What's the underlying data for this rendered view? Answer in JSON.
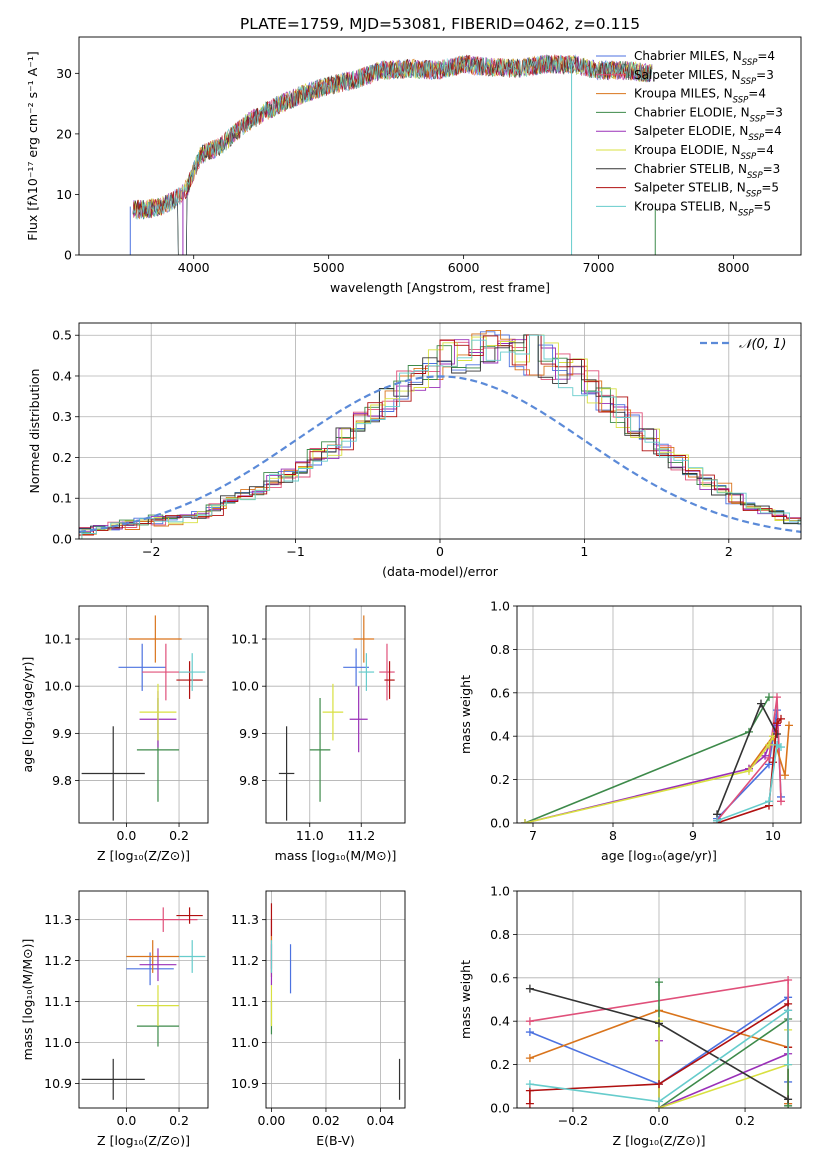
{
  "figure_title": "PLATE=1759, MJD=53081, FIBERID=0462, z=0.115",
  "chart_data": [
    {
      "id": "spectrum",
      "type": "line",
      "title": "PLATE=1759, MJD=53081, FIBERID=0462, z=0.115",
      "xlabel": "wavelength [Angstrom, rest frame]",
      "ylabel": "Flux [fλ10⁻¹⁷ erg cm⁻² s⁻¹ A⁻¹]",
      "xlim": [
        3150,
        8500
      ],
      "ylim": [
        0,
        36
      ],
      "xticks": [
        4000,
        5000,
        6000,
        7000,
        8000
      ],
      "yticks": [
        0,
        10,
        20,
        30
      ],
      "grid": false,
      "legend_position": "top-right",
      "spectrum_shape": {
        "x": [
          3550,
          3650,
          3750,
          3850,
          3950,
          4050,
          4200,
          4400,
          4600,
          4800,
          5000,
          5200,
          5400,
          5600,
          5800,
          6000,
          6200,
          6400,
          6600,
          6800,
          7000,
          7200,
          7400
        ],
        "y": [
          7.5,
          7.5,
          8.0,
          9.0,
          11.0,
          16.5,
          18.0,
          22.0,
          24.5,
          26.5,
          28.0,
          29.0,
          30.5,
          30.8,
          30.5,
          31.5,
          31.0,
          30.8,
          31.5,
          31.5,
          30.5,
          30.5,
          30.0
        ]
      },
      "dropouts_x": [
        3530,
        3920,
        6800,
        7420
      ],
      "series": [
        {
          "name": "Chabrier MILES, N",
          "sub": "SSP",
          "suffix": "=4",
          "color": "#4c72e0"
        },
        {
          "name": "Salpeter MILES, N",
          "sub": "SSP",
          "suffix": "=3",
          "color": "#e0507a"
        },
        {
          "name": "Kroupa MILES, N",
          "sub": "SSP",
          "suffix": "=4",
          "color": "#d9741c"
        },
        {
          "name": "Chabrier ELODIE, N",
          "sub": "SSP",
          "suffix": "=3",
          "color": "#3d8a4a"
        },
        {
          "name": "Salpeter ELODIE, N",
          "sub": "SSP",
          "suffix": "=4",
          "color": "#9a30b8"
        },
        {
          "name": "Kroupa ELODIE, N",
          "sub": "SSP",
          "suffix": "=4",
          "color": "#d8e040"
        },
        {
          "name": "Chabrier STELIB, N",
          "sub": "SSP",
          "suffix": "=3",
          "color": "#333333"
        },
        {
          "name": "Salpeter STELIB, N",
          "sub": "SSP",
          "suffix": "=5",
          "color": "#b01010"
        },
        {
          "name": "Kroupa STELIB, N",
          "sub": "SSP",
          "suffix": "=5",
          "color": "#66cccc"
        }
      ]
    },
    {
      "id": "residuals",
      "type": "bar",
      "xlabel": "(data-model)/error",
      "ylabel": "Normed distribution",
      "xlim": [
        -2.5,
        2.5
      ],
      "ylim": [
        0,
        0.53
      ],
      "xticks": [
        -2,
        -1,
        0,
        1,
        2
      ],
      "yticks": [
        0.0,
        0.1,
        0.2,
        0.3,
        0.4,
        0.5
      ],
      "grid": true,
      "legend_position": "top-right",
      "reference_label": "𝒩(0, 1)",
      "reference_color": "#5b8ad8",
      "bin_width": 0.1,
      "bin_start": -2.5,
      "base_heights": [
        0.02,
        0.025,
        0.03,
        0.035,
        0.04,
        0.045,
        0.05,
        0.055,
        0.065,
        0.075,
        0.09,
        0.105,
        0.12,
        0.14,
        0.16,
        0.18,
        0.2,
        0.225,
        0.25,
        0.28,
        0.31,
        0.34,
        0.37,
        0.4,
        0.42,
        0.44,
        0.45,
        0.46,
        0.47,
        0.48,
        0.46,
        0.45,
        0.44,
        0.42,
        0.4,
        0.37,
        0.34,
        0.31,
        0.28,
        0.25,
        0.22,
        0.19,
        0.165,
        0.14,
        0.12,
        0.1,
        0.085,
        0.07,
        0.058,
        0.046,
        0.036
      ]
    },
    {
      "id": "age-vs-Z",
      "type": "scatter",
      "xlabel": "Z [log₁₀(Z/Z⊙)]",
      "ylabel": "age  [log₁₀(age/yr)]",
      "xlim": [
        -0.18,
        0.31
      ],
      "ylim": [
        9.71,
        10.17
      ],
      "xticks": [
        0.0,
        0.2
      ],
      "yticks": [
        9.8,
        9.9,
        10.0,
        10.1
      ],
      "grid": true,
      "points": [
        {
          "x": 0.06,
          "y": 10.04,
          "xerr": 0.09,
          "yerr": 0.05,
          "color": "#4c72e0"
        },
        {
          "x": 0.15,
          "y": 10.03,
          "xerr": 0.09,
          "yerr": 0.06,
          "color": "#e0507a"
        },
        {
          "x": 0.11,
          "y": 10.1,
          "xerr": 0.1,
          "yerr": 0.05,
          "color": "#d9741c"
        },
        {
          "x": 0.12,
          "y": 9.865,
          "xerr": 0.08,
          "yerr": 0.11,
          "color": "#3d8a4a"
        },
        {
          "x": 0.12,
          "y": 9.93,
          "xerr": 0.07,
          "yerr": 0.06,
          "color": "#9a30b8"
        },
        {
          "x": 0.12,
          "y": 9.945,
          "xerr": 0.07,
          "yerr": 0.06,
          "color": "#d8e040"
        },
        {
          "x": -0.05,
          "y": 9.815,
          "xerr": 0.12,
          "yerr": 0.1,
          "color": "#333333"
        },
        {
          "x": 0.24,
          "y": 10.013,
          "xerr": 0.05,
          "yerr": 0.04,
          "color": "#b01010"
        },
        {
          "x": 0.25,
          "y": 10.03,
          "xerr": 0.05,
          "yerr": 0.04,
          "color": "#66cccc"
        }
      ]
    },
    {
      "id": "age-vs-mass",
      "type": "scatter",
      "xlabel": "mass [log₁₀(M/M⊙)]",
      "ylabel": "",
      "xlim": [
        10.83,
        11.37
      ],
      "ylim": [
        9.71,
        10.17
      ],
      "xticks": [
        11.0,
        11.2
      ],
      "yticks": [
        9.8,
        9.9,
        10.0,
        10.1
      ],
      "grid": true,
      "points": [
        {
          "x": 11.18,
          "y": 10.04,
          "xerr": 0.05,
          "yerr": 0.04,
          "color": "#4c72e0"
        },
        {
          "x": 11.3,
          "y": 10.03,
          "xerr": 0.03,
          "yerr": 0.06,
          "color": "#e0507a"
        },
        {
          "x": 11.21,
          "y": 10.1,
          "xerr": 0.04,
          "yerr": 0.05,
          "color": "#d9741c"
        },
        {
          "x": 11.04,
          "y": 9.865,
          "xerr": 0.04,
          "yerr": 0.11,
          "color": "#3d8a4a"
        },
        {
          "x": 11.19,
          "y": 9.93,
          "xerr": 0.035,
          "yerr": 0.07,
          "color": "#9a30b8"
        },
        {
          "x": 11.09,
          "y": 9.945,
          "xerr": 0.04,
          "yerr": 0.06,
          "color": "#d8e040"
        },
        {
          "x": 10.91,
          "y": 9.815,
          "xerr": 0.03,
          "yerr": 0.1,
          "color": "#333333"
        },
        {
          "x": 11.31,
          "y": 10.013,
          "xerr": 0.02,
          "yerr": 0.04,
          "color": "#b01010"
        },
        {
          "x": 11.22,
          "y": 10.03,
          "xerr": 0.03,
          "yerr": 0.04,
          "color": "#66cccc"
        }
      ]
    },
    {
      "id": "massweight-vs-age",
      "type": "line",
      "xlabel": "age  [log₁₀(age/yr)]",
      "ylabel": "mass weight",
      "xlim": [
        6.8,
        10.35
      ],
      "ylim": [
        0,
        1.0
      ],
      "xticks": [
        7,
        8,
        9,
        10
      ],
      "yticks": [
        0.0,
        0.2,
        0.4,
        0.6,
        0.8,
        1.0
      ],
      "grid": true,
      "series": [
        {
          "color": "#4c72e0",
          "x": [
            9.3,
            9.95,
            10.05,
            10.1
          ],
          "y": [
            0.02,
            0.27,
            0.52,
            0.12
          ]
        },
        {
          "color": "#e0507a",
          "x": [
            9.3,
            9.95,
            10.05,
            10.1
          ],
          "y": [
            0.01,
            0.3,
            0.58,
            0.1
          ]
        },
        {
          "color": "#d9741c",
          "x": [
            9.7,
            10.0,
            10.15,
            10.2
          ],
          "y": [
            0.25,
            0.4,
            0.22,
            0.45
          ]
        },
        {
          "color": "#3d8a4a",
          "x": [
            6.9,
            9.7,
            9.95
          ],
          "y": [
            0.0,
            0.42,
            0.58
          ]
        },
        {
          "color": "#9a30b8",
          "x": [
            6.9,
            9.7,
            9.9,
            10.05
          ],
          "y": [
            0.0,
            0.25,
            0.31,
            0.45
          ]
        },
        {
          "color": "#d8e040",
          "x": [
            6.9,
            9.7,
            9.95,
            10.0
          ],
          "y": [
            0.0,
            0.24,
            0.36,
            0.4
          ]
        },
        {
          "color": "#333333",
          "x": [
            9.3,
            9.85,
            10.05
          ],
          "y": [
            0.04,
            0.55,
            0.41
          ]
        },
        {
          "color": "#b01010",
          "x": [
            9.3,
            9.95,
            10.0,
            10.05,
            10.1
          ],
          "y": [
            0.0,
            0.08,
            0.28,
            0.46,
            0.48
          ]
        },
        {
          "color": "#66cccc",
          "x": [
            9.3,
            9.95,
            10.05,
            10.1
          ],
          "y": [
            0.01,
            0.1,
            0.36,
            0.35
          ]
        }
      ]
    },
    {
      "id": "mass-vs-Z",
      "type": "scatter",
      "xlabel": "Z [log₁₀(Z/Z⊙)]",
      "ylabel": "mass [log₁₀(M/M⊙)]",
      "xlim": [
        -0.18,
        0.31
      ],
      "ylim": [
        10.84,
        11.37
      ],
      "xticks": [
        0.0,
        0.2
      ],
      "yticks": [
        10.9,
        11.0,
        11.1,
        11.2,
        11.3
      ],
      "grid": true,
      "points": [
        {
          "x": 0.09,
          "y": 11.18,
          "xerr": 0.09,
          "yerr": 0.04,
          "color": "#4c72e0"
        },
        {
          "x": 0.14,
          "y": 11.3,
          "xerr": 0.13,
          "yerr": 0.03,
          "color": "#e0507a"
        },
        {
          "x": 0.1,
          "y": 11.21,
          "xerr": 0.1,
          "yerr": 0.04,
          "color": "#d9741c"
        },
        {
          "x": 0.12,
          "y": 11.04,
          "xerr": 0.08,
          "yerr": 0.05,
          "color": "#3d8a4a"
        },
        {
          "x": 0.12,
          "y": 11.19,
          "xerr": 0.07,
          "yerr": 0.04,
          "color": "#9a30b8"
        },
        {
          "x": 0.12,
          "y": 11.09,
          "xerr": 0.08,
          "yerr": 0.05,
          "color": "#d8e040"
        },
        {
          "x": -0.05,
          "y": 10.91,
          "xerr": 0.12,
          "yerr": 0.05,
          "color": "#333333"
        },
        {
          "x": 0.24,
          "y": 11.31,
          "xerr": 0.05,
          "yerr": 0.02,
          "color": "#b01010"
        },
        {
          "x": 0.25,
          "y": 11.21,
          "xerr": 0.05,
          "yerr": 0.04,
          "color": "#66cccc"
        }
      ]
    },
    {
      "id": "mass-vs-ebv",
      "type": "scatter",
      "xlabel": "E(B-V)",
      "ylabel": "",
      "xlim": [
        -0.002,
        0.049
      ],
      "ylim": [
        10.84,
        11.37
      ],
      "xticks": [
        0.0,
        0.02,
        0.04
      ],
      "yticks": [
        10.9,
        11.0,
        11.1,
        11.2,
        11.3
      ],
      "grid": true,
      "points": [
        {
          "x": 0.007,
          "y": 11.18,
          "xerr": 0.0,
          "yerr": 0.06,
          "color": "#4c72e0"
        },
        {
          "x": 0.0,
          "y": 11.24,
          "xerr": 0.0,
          "yerr": 0.06,
          "color": "#e0507a"
        },
        {
          "x": 0.0,
          "y": 11.21,
          "xerr": 0.0,
          "yerr": 0.05,
          "color": "#d9741c"
        },
        {
          "x": 0.0,
          "y": 11.06,
          "xerr": 0.0,
          "yerr": 0.04,
          "color": "#3d8a4a"
        },
        {
          "x": 0.0,
          "y": 11.19,
          "xerr": 0.0,
          "yerr": 0.05,
          "color": "#9a30b8"
        },
        {
          "x": 0.0,
          "y": 11.09,
          "xerr": 0.0,
          "yerr": 0.05,
          "color": "#d8e040"
        },
        {
          "x": 0.047,
          "y": 10.91,
          "xerr": 0.0,
          "yerr": 0.05,
          "color": "#333333"
        },
        {
          "x": 0.0,
          "y": 11.3,
          "xerr": 0.0,
          "yerr": 0.04,
          "color": "#b01010"
        },
        {
          "x": 0.0,
          "y": 11.21,
          "xerr": 0.0,
          "yerr": 0.04,
          "color": "#66cccc"
        }
      ]
    },
    {
      "id": "massweight-vs-Z",
      "type": "line",
      "xlabel": "Z [log₁₀(Z/Z⊙)]",
      "ylabel": "mass weight",
      "xlim": [
        -0.33,
        0.33
      ],
      "ylim": [
        0,
        1.0
      ],
      "xticks": [
        -0.2,
        0.0,
        0.2
      ],
      "yticks": [
        0.0,
        0.2,
        0.4,
        0.6,
        0.8,
        1.0
      ],
      "grid": true,
      "series": [
        {
          "color": "#4c72e0",
          "x": [
            -0.3,
            0.0,
            0.3,
            0.3
          ],
          "y": [
            0.35,
            0.11,
            0.51,
            0.12
          ]
        },
        {
          "color": "#e0507a",
          "x": [
            -0.3,
            0.3,
            0.3
          ],
          "y": [
            0.4,
            0.59,
            0.02
          ]
        },
        {
          "color": "#d9741c",
          "x": [
            -0.3,
            0.0,
            0.3,
            0.3
          ],
          "y": [
            0.23,
            0.45,
            0.28,
            0.02
          ]
        },
        {
          "color": "#3d8a4a",
          "x": [
            0.0,
            0.0,
            0.3,
            0.3
          ],
          "y": [
            0.58,
            0.0,
            0.41,
            0.01
          ]
        },
        {
          "color": "#9a30b8",
          "x": [
            0.0,
            0.0,
            0.3,
            0.3
          ],
          "y": [
            0.31,
            0.0,
            0.25,
            0.45
          ]
        },
        {
          "color": "#d8e040",
          "x": [
            0.0,
            0.0,
            0.3,
            0.3
          ],
          "y": [
            0.4,
            0.0,
            0.2,
            0.36
          ]
        },
        {
          "color": "#333333",
          "x": [
            -0.3,
            0.0,
            0.3
          ],
          "y": [
            0.55,
            0.39,
            0.04
          ]
        },
        {
          "color": "#b01010",
          "x": [
            -0.3,
            -0.3,
            0.0,
            0.3,
            0.3
          ],
          "y": [
            0.02,
            0.08,
            0.11,
            0.48,
            0.28
          ]
        },
        {
          "color": "#66cccc",
          "x": [
            -0.3,
            0.0,
            0.3,
            0.3
          ],
          "y": [
            0.11,
            0.03,
            0.45,
            0.2
          ]
        }
      ]
    }
  ]
}
